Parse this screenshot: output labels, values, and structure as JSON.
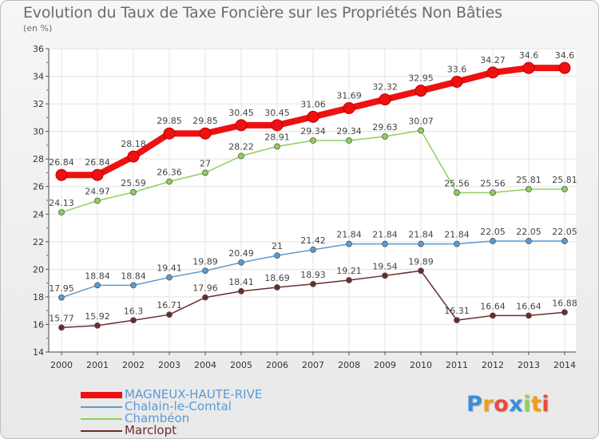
{
  "page": {
    "title": "Evolution du Taux de Taxe Foncière sur les Propriétés Non Bâties",
    "subtitle": "(en %)",
    "logo_text": "Proxiti"
  },
  "chart_data": {
    "type": "line",
    "title": "Evolution du Taux de Taxe Foncière sur les Propriétés Non Bâties",
    "ylabel": "(en %)",
    "xlabel": "",
    "x": [
      "2000",
      "2001",
      "2002",
      "2003",
      "2004",
      "2005",
      "2006",
      "2007",
      "2008",
      "2009",
      "2010",
      "2011",
      "2012",
      "2013",
      "2014"
    ],
    "ylim": [
      14,
      36
    ],
    "yticks": [
      "14",
      "16",
      "18",
      "20",
      "22",
      "24",
      "26",
      "28",
      "30",
      "32",
      "34",
      "36"
    ],
    "grid": true,
    "legend_position": "bottom-left",
    "series": [
      {
        "name": "MAGNEUX-HAUTE-RIVE",
        "color": "#ee1111",
        "values": [
          26.84,
          26.84,
          28.18,
          29.85,
          29.85,
          30.45,
          30.45,
          31.06,
          31.69,
          32.32,
          32.95,
          33.6,
          34.27,
          34.6,
          34.6
        ],
        "labels": [
          "26.84",
          "26.84",
          "28.18",
          "29.85",
          "29.85",
          "30.45",
          "30.45",
          "31.06",
          "31.69",
          "32.32",
          "32.95",
          "33.6",
          "34.27",
          "34.6",
          "34.6"
        ]
      },
      {
        "name": "Chalain-le-Comtal",
        "color": "#5a9bd5",
        "values": [
          17.95,
          18.84,
          18.84,
          19.41,
          19.89,
          20.49,
          21,
          21.42,
          21.84,
          21.84,
          21.84,
          21.84,
          22.05,
          22.05,
          22.05
        ],
        "labels": [
          "17.95",
          "18.84",
          "18.84",
          "19.41",
          "19.89",
          "20.49",
          "21",
          "21.42",
          "21.84",
          "21.84",
          "21.84",
          "21.84",
          "22.05",
          "22.05",
          "22.05"
        ]
      },
      {
        "name": "Chambéon",
        "color": "#8ed05a",
        "values": [
          24.13,
          24.97,
          25.59,
          26.36,
          27,
          28.22,
          28.91,
          29.34,
          29.34,
          29.63,
          30.07,
          25.56,
          25.56,
          25.81,
          25.81
        ],
        "labels": [
          "24.13",
          "24.97",
          "25.59",
          "26.36",
          "27",
          "28.22",
          "28.91",
          "29.34",
          "29.34",
          "29.63",
          "30.07",
          "25.56",
          "25.56",
          "25.81",
          "25.81"
        ]
      },
      {
        "name": "Marclopt",
        "color": "#6b2c2c",
        "values": [
          15.77,
          15.92,
          16.3,
          16.71,
          17.96,
          18.41,
          18.69,
          18.93,
          19.21,
          19.54,
          19.89,
          16.31,
          16.64,
          16.64,
          16.88
        ],
        "labels": [
          "15.77",
          "15.92",
          "16.3",
          "16.71",
          "17.96",
          "18.41",
          "18.69",
          "18.93",
          "19.21",
          "19.54",
          "19.89",
          "16.31",
          "16.64",
          "16.64",
          "16.88"
        ]
      }
    ]
  },
  "logo_colors": [
    "#3a8fd8",
    "#f39c12",
    "#e74c3c",
    "#3a8fd8",
    "#8ed05a",
    "#f39c12",
    "#e74c3c"
  ]
}
